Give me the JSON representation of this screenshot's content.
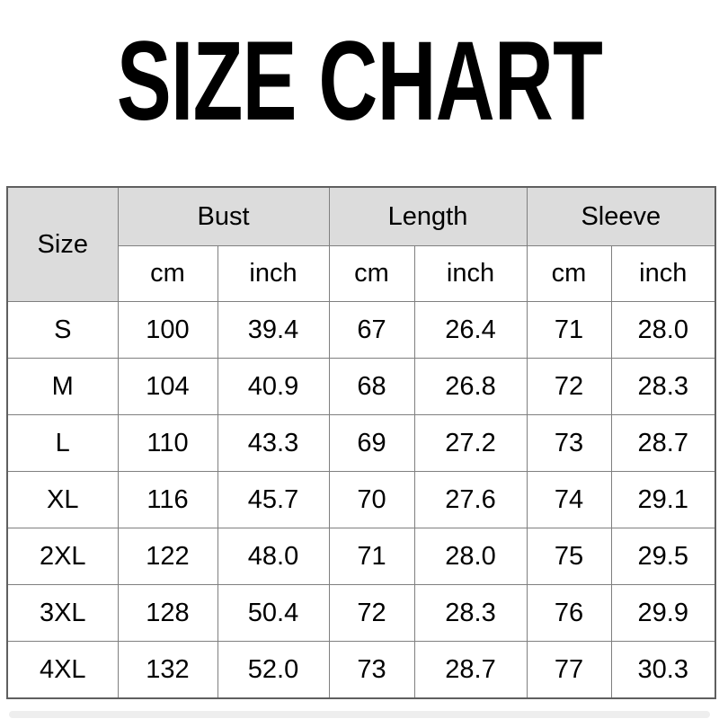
{
  "title": "SIZE CHART",
  "colors": {
    "page_background": "#ffffff",
    "header_cell_background": "#dcdcdc",
    "grid_line": "#7f7f7f",
    "outer_border": "#5f5f5f",
    "text": "#000000",
    "bottom_strip": "#eeeeee"
  },
  "chart_data": {
    "type": "table",
    "title": "SIZE CHART",
    "header": {
      "size_label": "Size",
      "groups": [
        {
          "label": "Bust"
        },
        {
          "label": "Length"
        },
        {
          "label": "Sleeve"
        }
      ],
      "unit_labels": [
        "cm",
        "inch"
      ]
    },
    "columns": [
      "Size",
      "Bust cm",
      "Bust inch",
      "Length cm",
      "Length inch",
      "Sleeve cm",
      "Sleeve inch"
    ],
    "rows": [
      [
        "S",
        "100",
        "39.4",
        "67",
        "26.4",
        "71",
        "28.0"
      ],
      [
        "M",
        "104",
        "40.9",
        "68",
        "26.8",
        "72",
        "28.3"
      ],
      [
        "L",
        "110",
        "43.3",
        "69",
        "27.2",
        "73",
        "28.7"
      ],
      [
        "XL",
        "116",
        "45.7",
        "70",
        "27.6",
        "74",
        "29.1"
      ],
      [
        "2XL",
        "122",
        "48.0",
        "71",
        "28.0",
        "75",
        "29.5"
      ],
      [
        "3XL",
        "128",
        "50.4",
        "72",
        "28.3",
        "76",
        "29.9"
      ],
      [
        "4XL",
        "132",
        "52.0",
        "73",
        "28.7",
        "77",
        "30.3"
      ]
    ]
  }
}
